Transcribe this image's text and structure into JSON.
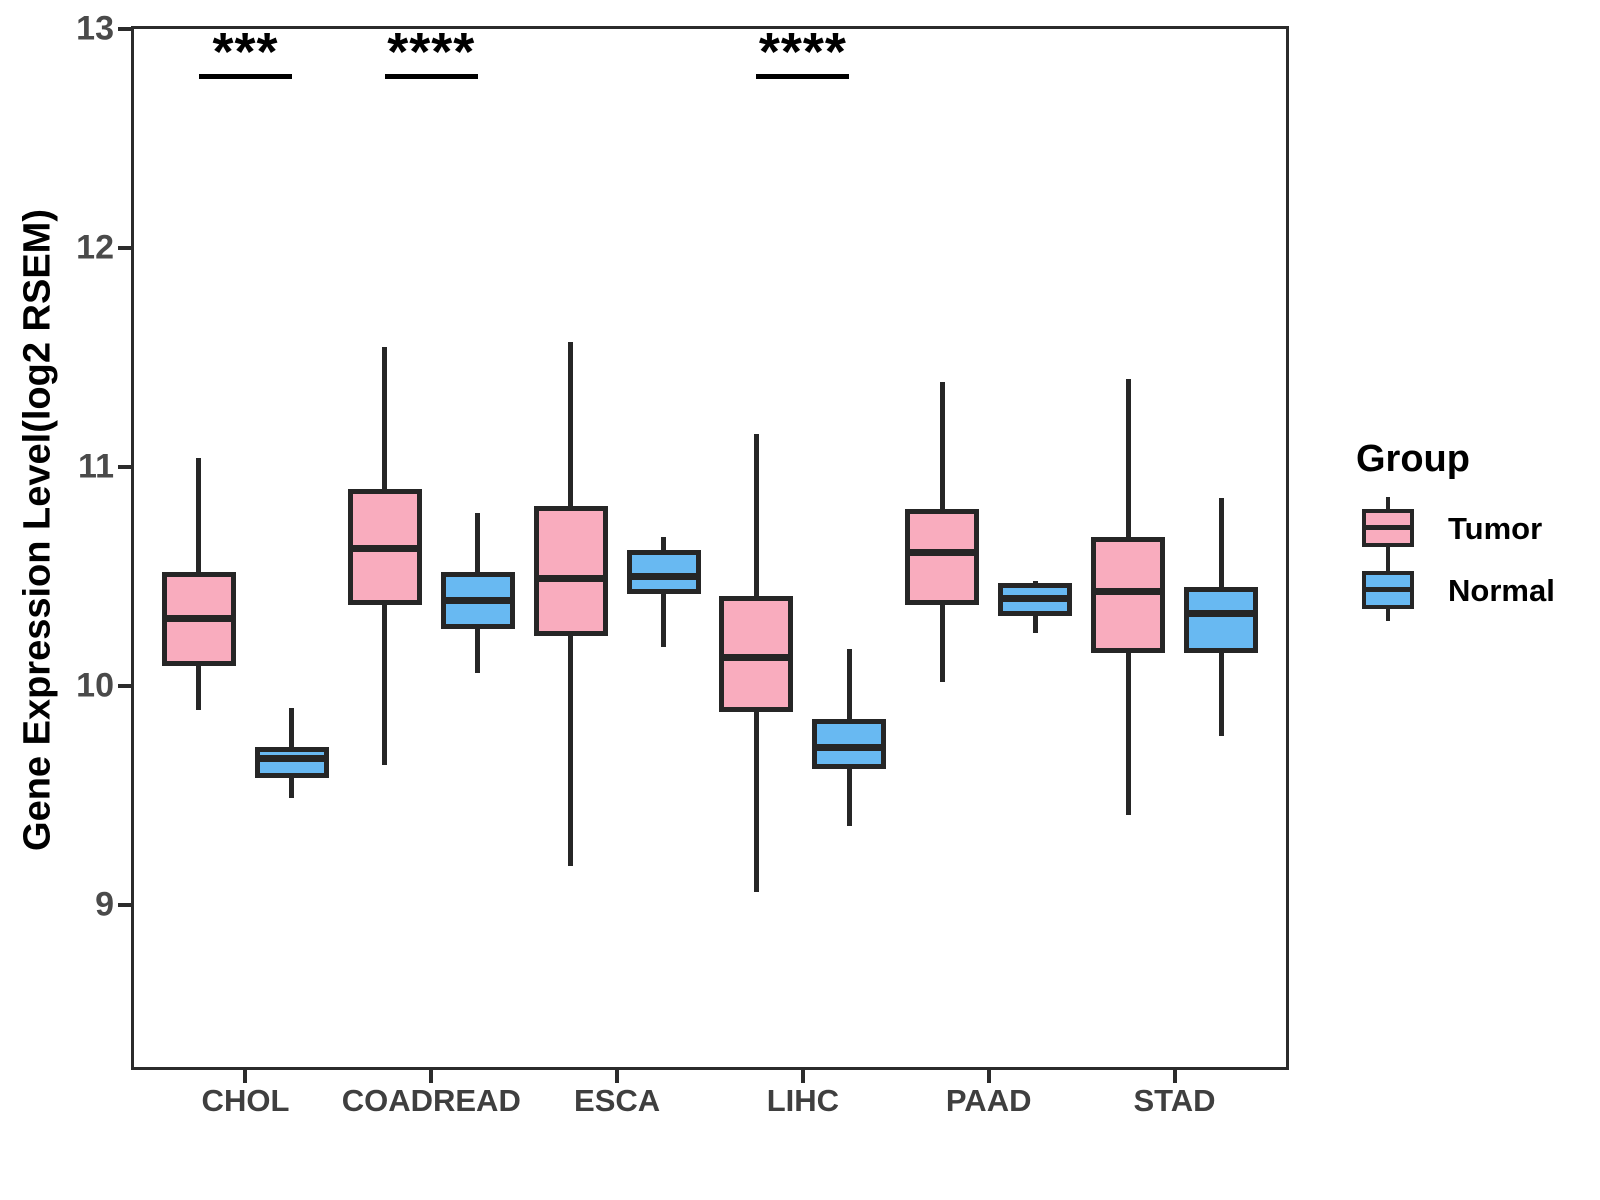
{
  "chart_data": {
    "type": "boxplot",
    "title": "",
    "xlabel": "",
    "ylabel": "Gene Expression Level(log2 RSEM)",
    "ylim": [
      8.26,
      13
    ],
    "yticks": [
      13,
      12,
      11,
      10,
      9
    ],
    "grid": false,
    "categories": [
      "CHOL",
      "COADREAD",
      "ESCA",
      "LIHC",
      "PAAD",
      "STAD"
    ],
    "legend": {
      "title": "Group",
      "position": "right",
      "entries": [
        {
          "label": "Tumor",
          "color": "#F9ACBE"
        },
        {
          "label": "Normal",
          "color": "#68B9F2"
        }
      ]
    },
    "series": [
      {
        "name": "Tumor",
        "fill": "#F9ACBE",
        "boxes": [
          {
            "category": "CHOL",
            "min": 9.89,
            "q1": 10.09,
            "median": 10.31,
            "q3": 10.52,
            "max": 11.04
          },
          {
            "category": "COADREAD",
            "min": 9.64,
            "q1": 10.37,
            "median": 10.63,
            "q3": 10.9,
            "max": 11.55
          },
          {
            "category": "ESCA",
            "min": 9.18,
            "q1": 10.23,
            "median": 10.49,
            "q3": 10.82,
            "max": 11.57
          },
          {
            "category": "LIHC",
            "min": 9.06,
            "q1": 9.88,
            "median": 10.13,
            "q3": 10.41,
            "max": 11.15
          },
          {
            "category": "PAAD",
            "min": 10.02,
            "q1": 10.37,
            "median": 10.61,
            "q3": 10.81,
            "max": 11.39
          },
          {
            "category": "STAD",
            "min": 9.41,
            "q1": 10.15,
            "median": 10.43,
            "q3": 10.68,
            "max": 11.4
          }
        ]
      },
      {
        "name": "Normal",
        "fill": "#68B9F2",
        "boxes": [
          {
            "category": "CHOL",
            "min": 9.49,
            "q1": 9.58,
            "median": 9.67,
            "q3": 9.72,
            "max": 9.9
          },
          {
            "category": "COADREAD",
            "min": 10.06,
            "q1": 10.26,
            "median": 10.39,
            "q3": 10.52,
            "max": 10.79
          },
          {
            "category": "ESCA",
            "min": 10.18,
            "q1": 10.42,
            "median": 10.5,
            "q3": 10.62,
            "max": 10.68
          },
          {
            "category": "LIHC",
            "min": 9.36,
            "q1": 9.62,
            "median": 9.72,
            "q3": 9.85,
            "max": 10.17
          },
          {
            "category": "PAAD",
            "min": 10.24,
            "q1": 10.32,
            "median": 10.4,
            "q3": 10.47,
            "max": 10.48
          },
          {
            "category": "STAD",
            "min": 9.77,
            "q1": 10.15,
            "median": 10.33,
            "q3": 10.45,
            "max": 10.86
          }
        ]
      }
    ],
    "annotations": [
      {
        "category": "CHOL",
        "label": "***"
      },
      {
        "category": "COADREAD",
        "label": "****"
      },
      {
        "category": "LIHC",
        "label": "****"
      }
    ],
    "colors": {
      "box_stroke": "#262626",
      "axis": "#2b2b2b",
      "tick_text": "#4a4a4a",
      "annotation": "#000000"
    }
  }
}
